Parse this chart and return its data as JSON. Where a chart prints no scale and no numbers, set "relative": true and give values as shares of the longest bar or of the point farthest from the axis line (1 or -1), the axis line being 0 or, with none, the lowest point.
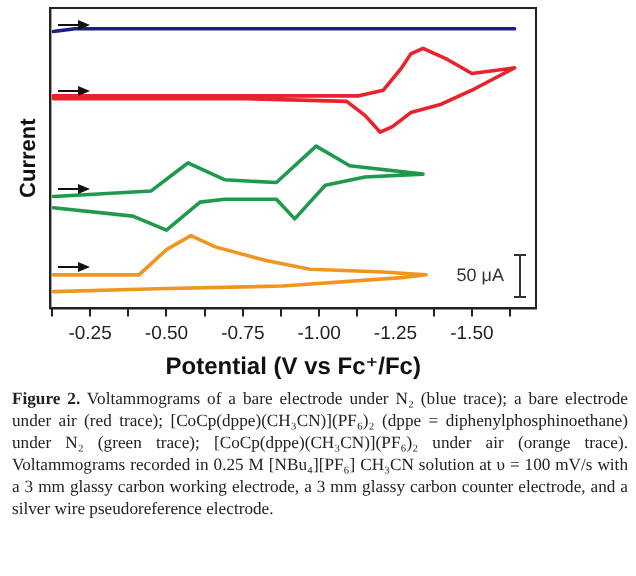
{
  "chart_data": {
    "type": "line",
    "relative": true,
    "xlabel": "Potential (V vs Fc⁺/Fc)",
    "ylabel": "Current",
    "xlim": [
      -0.12,
      -1.71
    ],
    "xticks": [
      {
        "value": -0.125,
        "label": null
      },
      -0.25,
      {
        "value": -0.375,
        "label": null
      },
      {
        "value": -0.5,
        "label": "-0.50"
      },
      {
        "value": -0.625,
        "label": null
      },
      -0.75,
      {
        "value": -0.875,
        "label": null
      },
      {
        "value": -1.0,
        "label": "-1.00"
      },
      {
        "value": -1.125,
        "label": null
      },
      -1.25,
      {
        "value": -1.375,
        "label": null
      },
      {
        "value": -1.5,
        "label": "-1.50"
      },
      {
        "value": -1.625,
        "label": null
      }
    ],
    "tick_labels": "x",
    "grid": false,
    "legend": false,
    "marker": "none",
    "line_style": "solid",
    "series": [
      {
        "color": "#1c1c8a",
        "x": [
          -0.13,
          -0.2,
          -1.64
        ],
        "values": [
          0.99,
          1.0,
          1.0
        ]
      },
      {
        "color": "#e8232b",
        "x": [
          -0.13,
          -0.76,
          -1.09,
          -1.15,
          -1.2,
          -1.24,
          -1.3,
          -1.4,
          -1.5,
          -1.64,
          -1.5,
          -1.42,
          -1.34,
          -1.3,
          -1.27,
          -1.21,
          -1.13,
          -0.76,
          -0.13
        ],
        "values": [
          0.75,
          0.75,
          0.74,
          0.69,
          0.63,
          0.65,
          0.7,
          0.73,
          0.78,
          0.86,
          0.84,
          0.89,
          0.93,
          0.91,
          0.86,
          0.78,
          0.76,
          0.76,
          0.76
        ]
      },
      {
        "color": "#1f9a4c",
        "x": [
          -0.13,
          -0.45,
          -0.57,
          -0.69,
          -0.86,
          -0.99,
          -1.1,
          -1.34,
          -1.15,
          -1.02,
          -0.92,
          -0.86,
          -0.69,
          -0.61,
          -0.5,
          -0.39,
          -0.13
        ],
        "values": [
          0.4,
          0.42,
          0.52,
          0.46,
          0.45,
          0.58,
          0.51,
          0.48,
          0.47,
          0.44,
          0.32,
          0.39,
          0.39,
          0.38,
          0.28,
          0.33,
          0.36
        ]
      },
      {
        "color": "#f0961e",
        "x": [
          -0.13,
          -0.41,
          -0.5,
          -0.58,
          -0.66,
          -0.83,
          -0.97,
          -1.21,
          -1.35,
          -1.27,
          -0.88,
          -0.47,
          -0.13
        ],
        "values": [
          0.12,
          0.12,
          0.21,
          0.26,
          0.22,
          0.17,
          0.14,
          0.13,
          0.12,
          0.11,
          0.08,
          0.07,
          0.06
        ]
      }
    ],
    "annotations": [
      "50 μA",
      "Figure 2. Voltammograms of a bare electrode under N₂ (blue trace); a bare electrode under air (red trace); [CoCp(dppe)(CH₃CN)](PF₆)₂ (dppe = diphenylphosphinoethane) under N₂ (green trace); [CoCp(dppe)(CH₃CN)](PF₆)₂ under air (orange trace). Voltammograms recorded in 0.25 M [NBu₄][PF₆] CH₃CN solution at υ = 100 mV/s with a 3 mm glassy carbon working electrode, a 3 mm glassy carbon counter electrode, and a silver wire pseudoreference electrode."
    ]
  }
}
